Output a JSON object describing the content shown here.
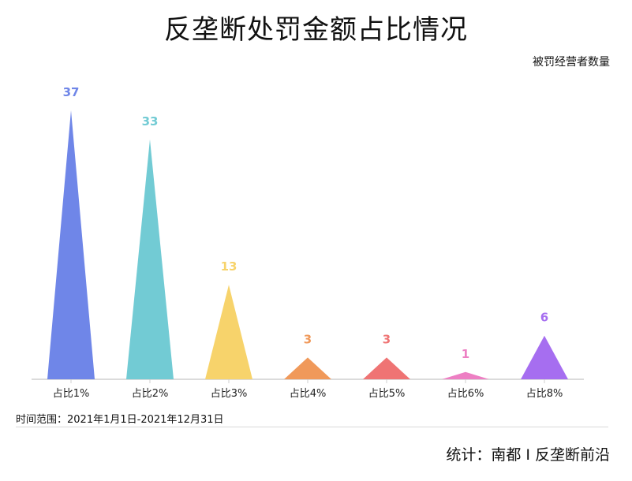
{
  "chart_data": {
    "type": "bar",
    "title": "反垄断处罚金额占比情况",
    "ylabel": "被罚经营者数量",
    "categories": [
      "占比1%",
      "占比2%",
      "占比3%",
      "占比4%",
      "占比5%",
      "占比6%",
      "占比8%"
    ],
    "values": [
      37,
      33,
      13,
      3,
      3,
      1,
      6
    ],
    "colors": [
      "#6f86e8",
      "#72cbd4",
      "#f7d36b",
      "#f0995a",
      "#ef7474",
      "#ed7fc3",
      "#a66ef0"
    ],
    "ylim": [
      0,
      37
    ],
    "grid": false,
    "legend": "none",
    "mark_shape": "triangle"
  },
  "footer": {
    "date_range": "时间范围：2021年1月1日-2021年12月31日",
    "source": "统计：南都 I 反垄断前沿"
  }
}
